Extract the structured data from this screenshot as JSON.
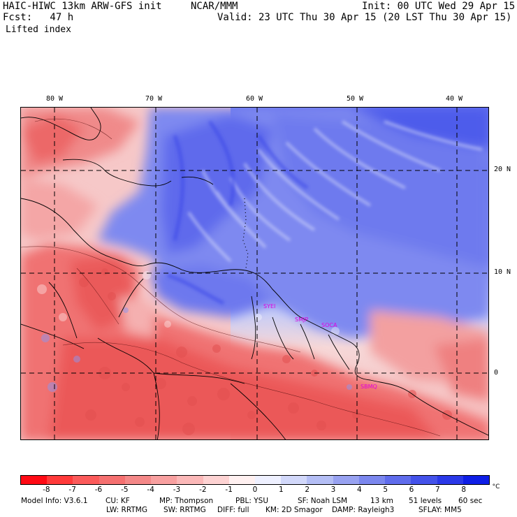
{
  "header": {
    "title": "HAIC-HIWC 13km ARW-GFS init",
    "org": "NCAR/MMM",
    "init": "Init: 00 UTC Wed 29 Apr 15",
    "fcst": "Fcst:   47 h",
    "valid": "Valid: 23 UTC Thu 30 Apr 15 (20 LST Thu 30 Apr 15)",
    "field": "Lifted index"
  },
  "map": {
    "lon_labels": [
      "80 W",
      "70 W",
      "60 W",
      "50 W",
      "40 W"
    ],
    "lat_labels": [
      "20 N",
      "10 N",
      "0"
    ],
    "stations": [
      "SYEI",
      "SMJP",
      "SOCA",
      "SBMQ"
    ]
  },
  "colorbar": {
    "colors": [
      "#ff0a14",
      "#ff3a3a",
      "#fb5a5a",
      "#f57070",
      "#f48888",
      "#f8a0a0",
      "#fbb8b8",
      "#fdd2d2",
      "#fff0f0",
      "#eef0ff",
      "#d2d8fa",
      "#b4bef5",
      "#98a2f1",
      "#7b87ee",
      "#5f6cec",
      "#4452ea",
      "#2a38e8",
      "#0e1ee6"
    ],
    "labels": [
      "-8",
      "-7",
      "-6",
      "-5",
      "-4",
      "-3",
      "-2",
      "-1",
      "0",
      "1",
      "2",
      "3",
      "4",
      "5",
      "6",
      "7",
      "8"
    ],
    "unit": "°C"
  },
  "footer": {
    "line1": [
      "Model Info: V3.6.1",
      "CU: KF",
      "MP: Thompson",
      "PBL: YSU",
      "SF: Noah LSM",
      "13 km",
      "51 levels",
      "60 sec"
    ],
    "line2": [
      "LW: RRTMG",
      "SW: RRTMG",
      "DIFF: full",
      "KM: 2D Smagor",
      "DAMP: Rayleigh3",
      "SFLAY: MM5"
    ]
  }
}
